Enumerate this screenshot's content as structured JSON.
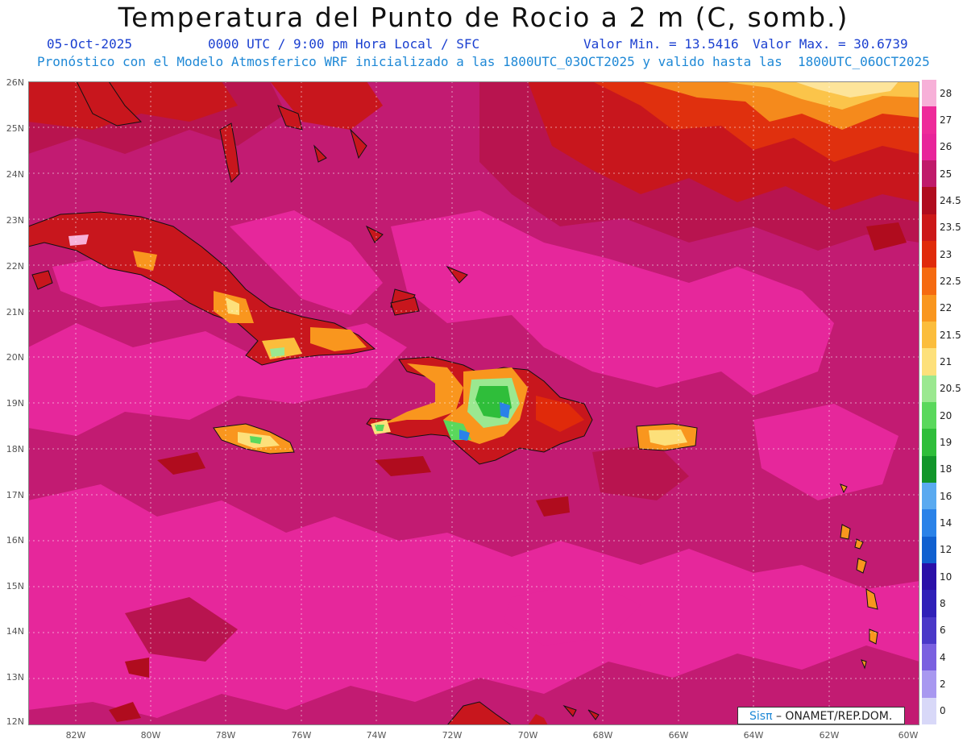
{
  "header": {
    "title": "Temperatura del Punto de Rocio a 2 m (C, somb.)",
    "date": "05-Oct-2025",
    "time": "0000 UTC / 9:00 pm Hora Local / SFC",
    "vmin": "Valor Min. = 13.5416",
    "vmax": "Valor Max. = 30.6739",
    "model": "Pronóstico con el Modelo Atmosferico WRF inicializado a las 1800UTC_03OCT2025 y valido hasta las  1800UTC_06OCT2025"
  },
  "map": {
    "lat_labels": [
      "26N",
      "25N",
      "24N",
      "23N",
      "22N",
      "21N",
      "20N",
      "19N",
      "18N",
      "17N",
      "16N",
      "15N",
      "14N",
      "13N",
      "12N"
    ],
    "lon_labels": [
      "82W",
      "80W",
      "78W",
      "76W",
      "74W",
      "72W",
      "70W",
      "68W",
      "66W",
      "64W",
      "62W",
      "60W"
    ],
    "credit_prefix": "Sisπ",
    "credit_text": "– ONAMET/REP.DOM."
  },
  "legend": {
    "levels": [
      {
        "label": "28",
        "color": "#f7b0d8"
      },
      {
        "label": "27",
        "color": "#ee2a9a"
      },
      {
        "label": "26",
        "color": "#e8249a"
      },
      {
        "label": "25",
        "color": "#c01a6a"
      },
      {
        "label": "24.5",
        "color": "#b00c1e"
      },
      {
        "label": "23.5",
        "color": "#cc1818"
      },
      {
        "label": "23",
        "color": "#e02a0a"
      },
      {
        "label": "22.5",
        "color": "#f56a10"
      },
      {
        "label": "22",
        "color": "#f9961e"
      },
      {
        "label": "21.5",
        "color": "#fbbd3c"
      },
      {
        "label": "21",
        "color": "#fde07a"
      },
      {
        "label": "20.5",
        "color": "#9be890"
      },
      {
        "label": "20",
        "color": "#5ad85c"
      },
      {
        "label": "19",
        "color": "#2fbe3a"
      },
      {
        "label": "18",
        "color": "#12962a"
      },
      {
        "label": "16",
        "color": "#5aaaf0"
      },
      {
        "label": "14",
        "color": "#2a82e8"
      },
      {
        "label": "12",
        "color": "#1060d0"
      },
      {
        "label": "10",
        "color": "#2a10a8"
      },
      {
        "label": "8",
        "color": "#3020b8"
      },
      {
        "label": "6",
        "color": "#4a38c8"
      },
      {
        "label": "4",
        "color": "#7a60e0"
      },
      {
        "label": "2",
        "color": "#a898f0"
      },
      {
        "label": "0",
        "color": "#d8d8f8"
      }
    ]
  }
}
